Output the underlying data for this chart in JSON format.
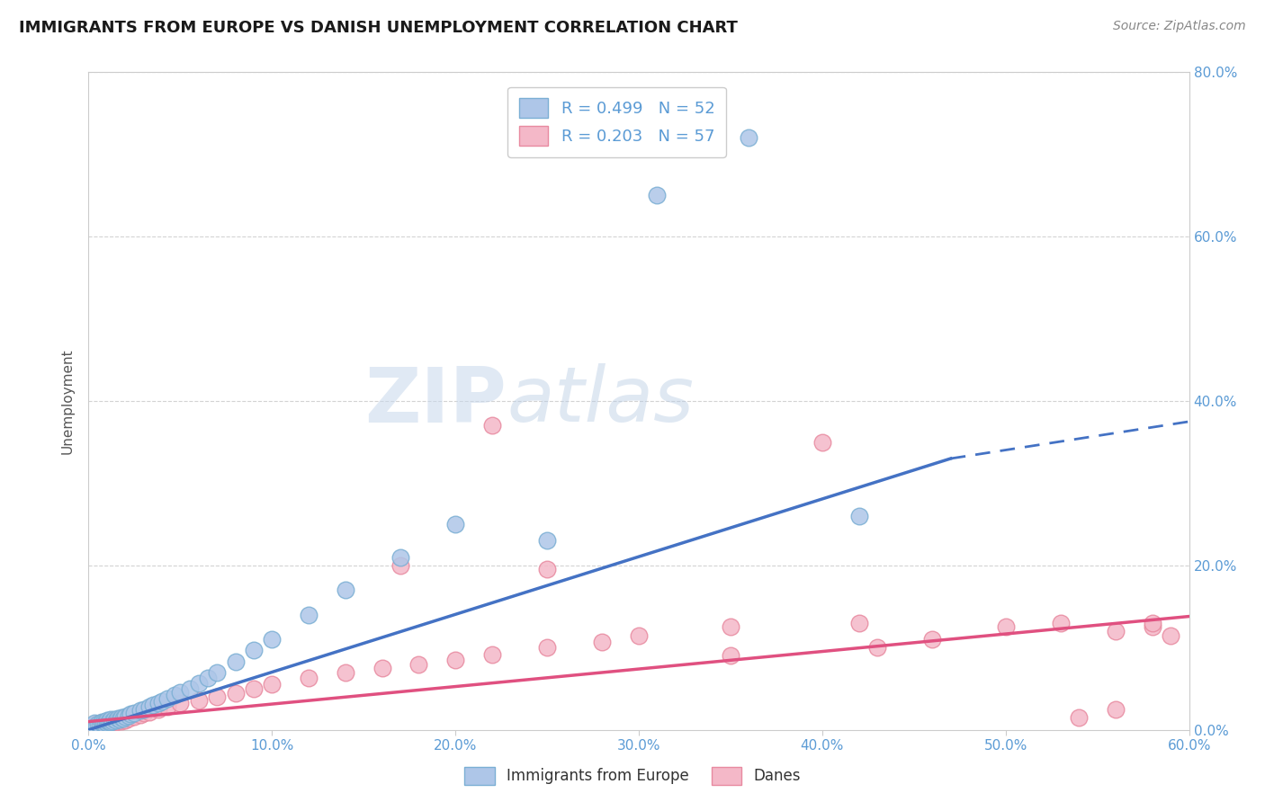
{
  "title": "IMMIGRANTS FROM EUROPE VS DANISH UNEMPLOYMENT CORRELATION CHART",
  "source": "Source: ZipAtlas.com",
  "xlabel": "",
  "ylabel": "Unemployment",
  "legend_label1": "Immigrants from Europe",
  "legend_label2": "Danes",
  "legend_r1": "R = 0.499",
  "legend_n1": "N = 52",
  "legend_r2": "R = 0.203",
  "legend_n2": "N = 57",
  "xmin": 0.0,
  "xmax": 0.6,
  "ymin": 0.0,
  "ymax": 0.8,
  "color_blue_fill": "#aec6e8",
  "color_blue_edge": "#7bafd4",
  "color_pink_fill": "#f4b8c8",
  "color_pink_edge": "#e88aa0",
  "color_blue_line": "#4472c4",
  "color_pink_line": "#e05080",
  "color_title": "#1a1a1a",
  "color_source": "#888888",
  "color_axis_labels": "#5b9bd5",
  "color_legend_text_black": "#1a1a1a",
  "color_legend_text_blue": "#5b9bd5",
  "watermark_zip": "ZIP",
  "watermark_atlas": "atlas",
  "grid_color": "#c8c8c8",
  "blue_scatter_x": [
    0.002,
    0.003,
    0.004,
    0.005,
    0.006,
    0.007,
    0.007,
    0.008,
    0.008,
    0.009,
    0.009,
    0.01,
    0.01,
    0.011,
    0.011,
    0.012,
    0.012,
    0.013,
    0.014,
    0.015,
    0.016,
    0.017,
    0.018,
    0.019,
    0.02,
    0.022,
    0.023,
    0.025,
    0.028,
    0.03,
    0.033,
    0.035,
    0.038,
    0.04,
    0.043,
    0.047,
    0.05,
    0.055,
    0.06,
    0.065,
    0.07,
    0.08,
    0.09,
    0.1,
    0.12,
    0.14,
    0.17,
    0.2,
    0.25,
    0.31,
    0.36,
    0.42
  ],
  "blue_scatter_y": [
    0.005,
    0.008,
    0.005,
    0.007,
    0.006,
    0.008,
    0.01,
    0.007,
    0.009,
    0.006,
    0.01,
    0.008,
    0.012,
    0.009,
    0.011,
    0.01,
    0.013,
    0.011,
    0.013,
    0.012,
    0.014,
    0.013,
    0.015,
    0.014,
    0.016,
    0.017,
    0.019,
    0.021,
    0.024,
    0.025,
    0.028,
    0.03,
    0.033,
    0.035,
    0.038,
    0.042,
    0.046,
    0.05,
    0.057,
    0.063,
    0.07,
    0.083,
    0.097,
    0.11,
    0.14,
    0.17,
    0.21,
    0.25,
    0.23,
    0.65,
    0.72,
    0.26
  ],
  "pink_scatter_x": [
    0.002,
    0.003,
    0.004,
    0.005,
    0.006,
    0.007,
    0.008,
    0.009,
    0.01,
    0.011,
    0.012,
    0.013,
    0.014,
    0.015,
    0.016,
    0.018,
    0.019,
    0.02,
    0.022,
    0.025,
    0.028,
    0.03,
    0.033,
    0.038,
    0.043,
    0.05,
    0.06,
    0.07,
    0.08,
    0.09,
    0.1,
    0.12,
    0.14,
    0.16,
    0.18,
    0.2,
    0.22,
    0.25,
    0.28,
    0.22,
    0.3,
    0.35,
    0.4,
    0.42,
    0.46,
    0.5,
    0.53,
    0.56,
    0.58,
    0.59,
    0.54,
    0.25,
    0.35,
    0.17,
    0.43,
    0.58,
    0.56
  ],
  "pink_scatter_y": [
    0.005,
    0.006,
    0.007,
    0.005,
    0.008,
    0.007,
    0.008,
    0.006,
    0.009,
    0.008,
    0.01,
    0.009,
    0.011,
    0.01,
    0.012,
    0.011,
    0.013,
    0.012,
    0.014,
    0.016,
    0.018,
    0.02,
    0.022,
    0.025,
    0.028,
    0.032,
    0.036,
    0.04,
    0.045,
    0.05,
    0.055,
    0.063,
    0.07,
    0.075,
    0.08,
    0.085,
    0.092,
    0.1,
    0.107,
    0.37,
    0.115,
    0.125,
    0.35,
    0.13,
    0.11,
    0.125,
    0.13,
    0.12,
    0.125,
    0.115,
    0.015,
    0.195,
    0.09,
    0.2,
    0.1,
    0.13,
    0.025
  ],
  "blue_line_x0": 0.0,
  "blue_line_y0": 0.0,
  "blue_line_x_solid_end": 0.47,
  "blue_line_y_solid_end": 0.33,
  "blue_line_x1": 0.6,
  "blue_line_y1": 0.375,
  "pink_line_x0": 0.0,
  "pink_line_y0": 0.01,
  "pink_line_x1": 0.6,
  "pink_line_y1": 0.138
}
